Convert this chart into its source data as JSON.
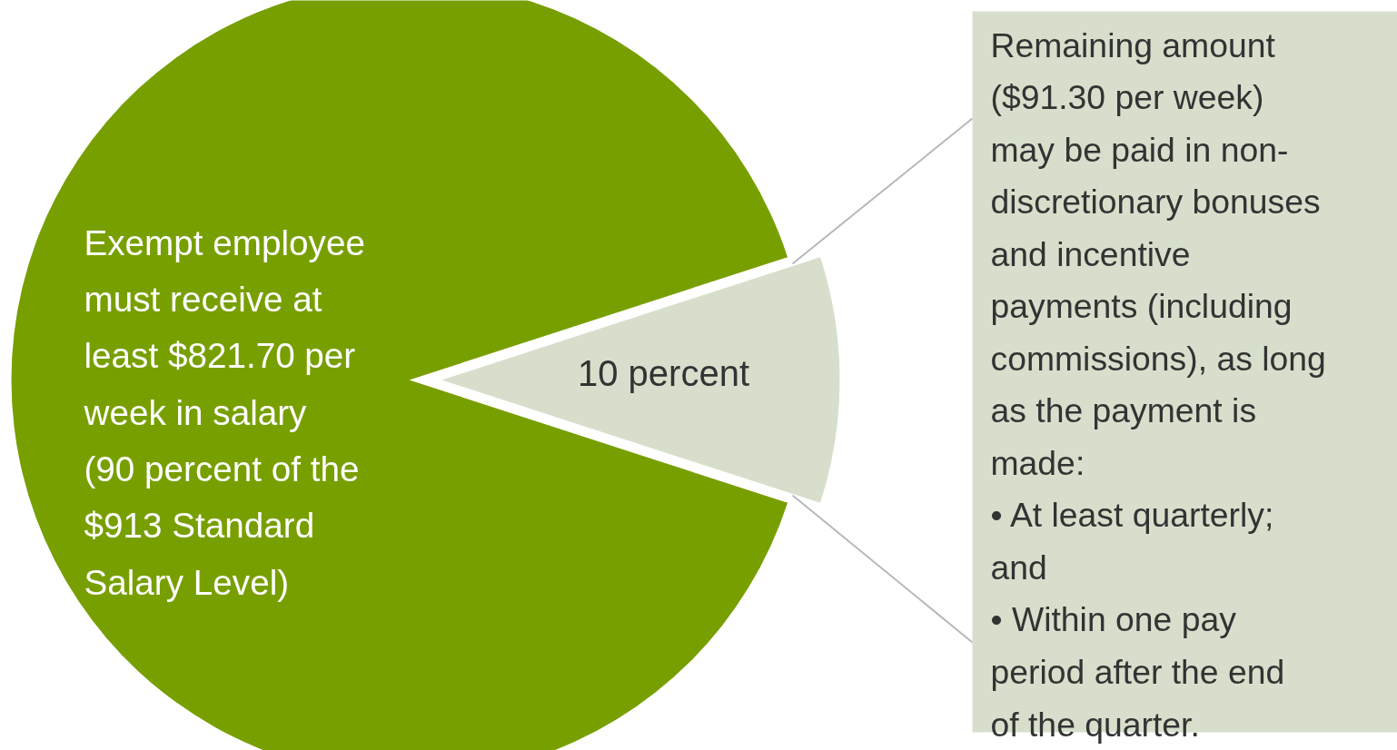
{
  "chart_data": {
    "type": "pie",
    "categories": [
      "Exempt employee\nmust receive at\nleast $821.70 per\nweek in salary\n(90 percent of the\n$913 Standard\nSalary Level)",
      "10 percent"
    ],
    "values": [
      90,
      10
    ],
    "colors": [
      "#789f00",
      "#d7dfcc"
    ],
    "annotations": [
      "Remaining amount\n($91.30 per week)\nmay be paid in non-\ndiscretionary bonuses\nand incentive\npayments (including\ncommissions), as long\nas the payment is\nmade:\n•    At least quarterly;\n      and\n•    Within one pay\n      period after the end\n      of the quarter."
    ]
  }
}
